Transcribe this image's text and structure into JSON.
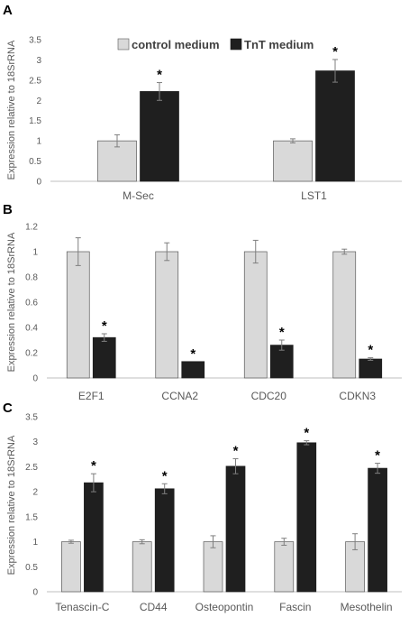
{
  "colors": {
    "control": "#d9d9d9",
    "tnt": "#1f1f1f",
    "bar_stroke": "#595959",
    "axis_text": "#595959",
    "error_bar": "#7f7f7f",
    "baseline": "#bfbfbf"
  },
  "legend": {
    "control_label": "control medium",
    "tnt_label": "TnT medium"
  },
  "chart_data": [
    {
      "panel": "A",
      "type": "bar",
      "ylabel": "Expression relative to 18SrRNA",
      "ylim": [
        0,
        3.5
      ],
      "yticks": [
        "0",
        "0.5",
        "1",
        "1.5",
        "2",
        "2.5",
        "3",
        "3.5"
      ],
      "categories": [
        "M-Sec",
        "LST1"
      ],
      "series": [
        {
          "name": "control medium",
          "values": [
            1.0,
            1.0
          ],
          "errors": [
            0.15,
            0.05
          ]
        },
        {
          "name": "TnT medium",
          "values": [
            2.22,
            2.73
          ],
          "errors": [
            0.22,
            0.28
          ]
        }
      ],
      "significance": [
        {
          "category": 0,
          "series": 1,
          "mark": "*"
        },
        {
          "category": 1,
          "series": 1,
          "mark": "*"
        }
      ],
      "legend_position": "top-center"
    },
    {
      "panel": "B",
      "type": "bar",
      "ylabel": "Expression relative to 18SrRNA",
      "ylim": [
        0,
        1.2
      ],
      "yticks": [
        "0",
        "0.2",
        "0.4",
        "0.6",
        "0.8",
        "1",
        "1.2"
      ],
      "categories": [
        "E2F1",
        "CCNA2",
        "CDC20",
        "CDKN3"
      ],
      "series": [
        {
          "name": "control medium",
          "values": [
            1.0,
            1.0,
            1.0,
            1.0
          ],
          "errors": [
            0.11,
            0.07,
            0.09,
            0.02
          ]
        },
        {
          "name": "TnT medium",
          "values": [
            0.32,
            0.13,
            0.26,
            0.15
          ],
          "errors": [
            0.03,
            0.0,
            0.04,
            0.01
          ]
        }
      ],
      "significance": [
        {
          "category": 0,
          "series": 1,
          "mark": "*"
        },
        {
          "category": 1,
          "series": 1,
          "mark": "*"
        },
        {
          "category": 2,
          "series": 1,
          "mark": "*"
        },
        {
          "category": 3,
          "series": 1,
          "mark": "*"
        }
      ]
    },
    {
      "panel": "C",
      "type": "bar",
      "ylabel": "Expression relative to 18SrRNA",
      "ylim": [
        0,
        3.5
      ],
      "yticks": [
        "0",
        "0.5",
        "1",
        "1.5",
        "2",
        "2.5",
        "3",
        "3.5"
      ],
      "categories": [
        "Tenascin-C",
        "CD44",
        "Osteopontin",
        "Fascin",
        "Mesothelin"
      ],
      "series": [
        {
          "name": "control medium",
          "values": [
            1.0,
            1.0,
            1.0,
            1.0,
            1.0
          ],
          "errors": [
            0.03,
            0.04,
            0.12,
            0.07,
            0.16
          ]
        },
        {
          "name": "TnT medium",
          "values": [
            2.18,
            2.06,
            2.51,
            2.98,
            2.47
          ],
          "errors": [
            0.18,
            0.1,
            0.15,
            0.04,
            0.1
          ]
        }
      ],
      "significance": [
        {
          "category": 0,
          "series": 1,
          "mark": "*"
        },
        {
          "category": 1,
          "series": 1,
          "mark": "*"
        },
        {
          "category": 2,
          "series": 1,
          "mark": "*"
        },
        {
          "category": 3,
          "series": 1,
          "mark": "*"
        },
        {
          "category": 4,
          "series": 1,
          "mark": "*"
        }
      ]
    }
  ]
}
